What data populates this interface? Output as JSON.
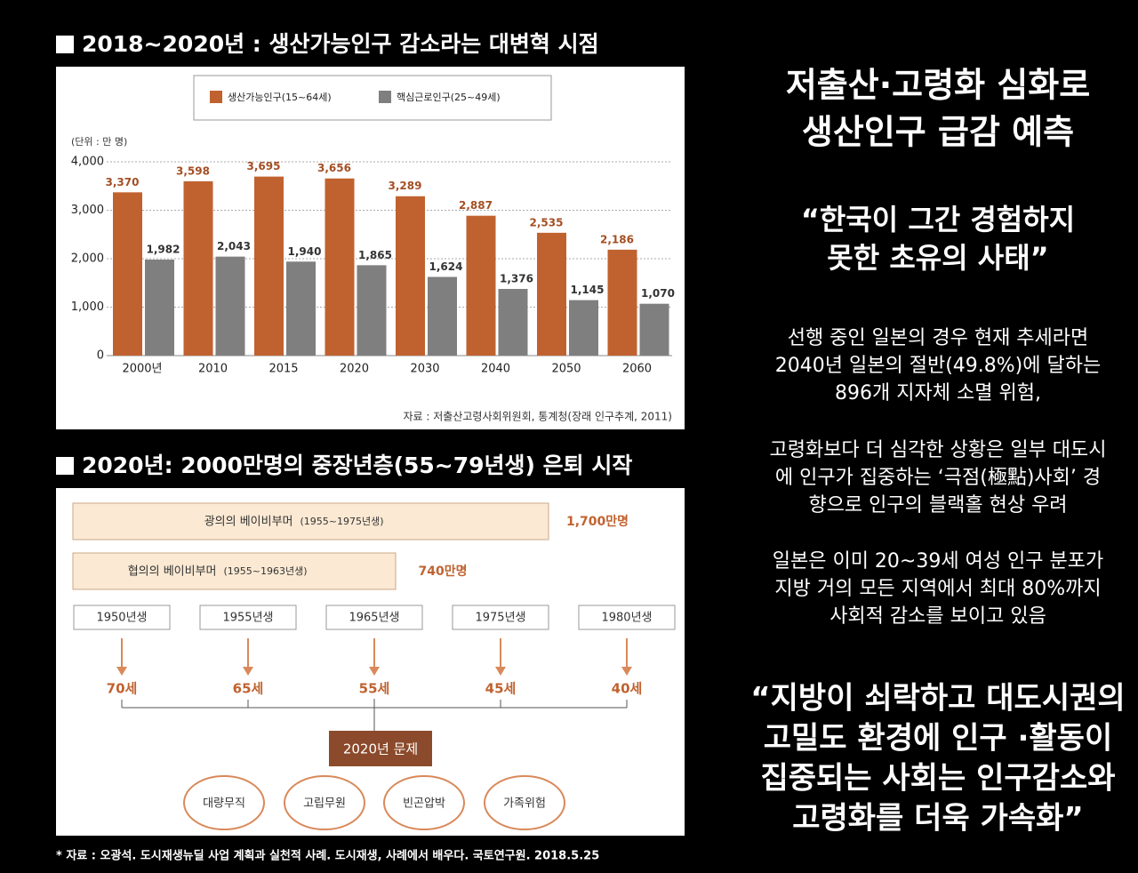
{
  "sections": [
    {
      "title": "2018~2020년 : 생산가능인구 감소라는 대변혁 시점"
    },
    {
      "title": "2020년: 2000만명의 중장년층(55~79년생) 은퇴 시작"
    }
  ],
  "chart_data": {
    "type": "bar",
    "unit": "(단위 : 만 명)",
    "source": "자료 : 저출산고령사회위원회, 통계청(장래 인구추계, 2011)",
    "categories": [
      "2000년",
      "2010",
      "2015",
      "2020",
      "2030",
      "2040",
      "2050",
      "2060"
    ],
    "series": [
      {
        "name": "생산가능인구(15~64세)",
        "color": "#c0622f",
        "values": [
          3370,
          3598,
          3695,
          3656,
          3289,
          2887,
          2535,
          2186
        ],
        "value_labels": [
          "3,370",
          "3,598",
          "3,695",
          "3,656",
          "3,289",
          "2,887",
          "2,535",
          "2,186"
        ]
      },
      {
        "name": "핵심근로인구(25~49세)",
        "color": "#7f7f7f",
        "values": [
          1982,
          2043,
          1940,
          1865,
          1624,
          1376,
          1145,
          1070
        ],
        "value_labels": [
          "1,982",
          "2,043",
          "1,940",
          "1,865",
          "1,624",
          "1,376",
          "1,145",
          "1,070"
        ]
      }
    ],
    "ylim": [
      0,
      4000
    ],
    "yticks": [
      0,
      {
        "value": 1000,
        "label": "1,000"
      },
      {
        "value": 2000,
        "label": "2,000"
      },
      {
        "value": 3000,
        "label": "3,000"
      },
      {
        "value": 4000,
        "label": "4,000"
      }
    ],
    "grid": true,
    "legend": "top"
  },
  "diagram": {
    "ranges": [
      {
        "label": "광의의 베이비부머",
        "period": "(1955~1975년생)",
        "count": "1,700만명"
      },
      {
        "label": "협의의 베이비부머",
        "period": "(1955~1963년생)",
        "count": "740만명"
      }
    ],
    "cohorts": [
      {
        "birth": "1950년생",
        "age": "70세"
      },
      {
        "birth": "1955년생",
        "age": "65세"
      },
      {
        "birth": "1965년생",
        "age": "55세"
      },
      {
        "birth": "1975년생",
        "age": "45세"
      },
      {
        "birth": "1980년생",
        "age": "40세"
      }
    ],
    "problem": "2020년 문제",
    "risks": [
      "대량무직",
      "고립무원",
      "빈곤압박",
      "가족위험"
    ]
  },
  "footnote": "* 자료 : 오광석. 도시재생뉴딜 사업 계획과 실천적 사례. 도시재생, 사례에서 배우다. 국토연구원. 2018.5.25",
  "sidebar": {
    "headline": [
      "저출산·고령화 심화로",
      "생산인구 급감 예측"
    ],
    "quote": [
      "“한국이 그간 경험하지",
      "못한 초유의 사태”"
    ],
    "paragraphs": [
      [
        "선행 중인 일본의 경우 현재 추세라면",
        "2040년 일본의 절반(49.8%)에 달하는",
        "896개 지자체 소멸 위험,"
      ],
      [
        "고령화보다 더 심각한 상황은 일부 대도시",
        "에 인구가 집중하는 ‘극점(極點)사회’ 경",
        "향으로 인구의 블랙홀 현상 우려"
      ],
      [
        "일본은 이미 20~39세 여성 인구 분포가",
        "지방 거의 모든 지역에서 최대 80%까지",
        "사회적 감소를 보이고 있음"
      ]
    ],
    "closing": [
      "“지방이 쇠락하고 대도시권의",
      "고밀도 환경에 인구 ·활동이",
      "집중되는 사회는 인구감소와",
      "고령화를 더욱 가속화”"
    ]
  }
}
